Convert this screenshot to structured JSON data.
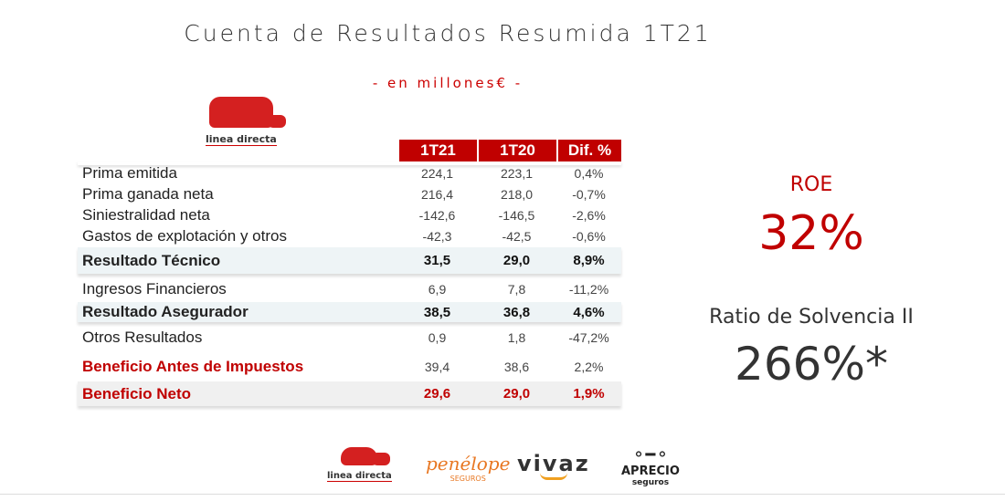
{
  "header": {
    "title": "Cuenta de Resultados Resumida 1T21",
    "subtitle": "- en millones€ -"
  },
  "table": {
    "columns": [
      "1T21",
      "1T20",
      "Dif. %"
    ],
    "rows": [
      {
        "label": "Prima emitida",
        "values": [
          "224,1",
          "223,1",
          "0,4%"
        ]
      },
      {
        "label": "Prima ganada neta",
        "values": [
          "216,4",
          "218,0",
          "-0,7%"
        ]
      },
      {
        "label": "Siniestralidad neta",
        "values": [
          "-142,6",
          "-146,5",
          "-2,6%"
        ]
      },
      {
        "label": "Gastos de explotación y otros",
        "values": [
          "-42,3",
          "-42,5",
          "-0,6%"
        ]
      },
      {
        "label": "Resultado Técnico",
        "values": [
          "31,5",
          "29,0",
          "8,9%"
        ]
      },
      {
        "label": "Ingresos Financieros",
        "values": [
          "6,9",
          "7,8",
          "-11,2%"
        ]
      },
      {
        "label": "Resultado Asegurador",
        "values": [
          "38,5",
          "36,8",
          "4,6%"
        ]
      },
      {
        "label": "Otros Resultados",
        "values": [
          "0,9",
          "1,8",
          "-47,2%"
        ]
      },
      {
        "label": "Beneficio Antes de Impuestos",
        "values": [
          "39,4",
          "38,6",
          "2,2%"
        ]
      },
      {
        "label": "Beneficio Neto",
        "values": [
          "29,6",
          "29,0",
          "1,9%"
        ]
      }
    ]
  },
  "kpis": {
    "roe_label": "ROE",
    "roe_value": "32%",
    "solv_label": "Ratio de Solvencia II",
    "solv_value": "266%*"
  },
  "logos": {
    "linea_directa": "linea directa",
    "penelope": "penélope",
    "penelope_sub": "SEGUROS",
    "vivaz": "vivaz",
    "aprecio": "APRECIO",
    "aprecio_sub": "seguros"
  },
  "colors": {
    "accent": "#c00000"
  }
}
